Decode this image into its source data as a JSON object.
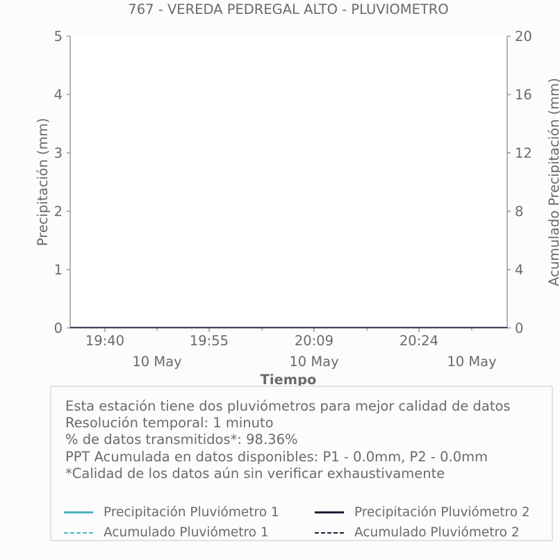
{
  "chart_data": {
    "type": "line",
    "title": "767 - VEREDA PEDREGAL ALTO - PLUVIOMETRO",
    "xlabel": "Tiempo",
    "ylabel": "Precipitación (mm)",
    "y2label": "Acumulado Precipitación (mm)",
    "x_ticks": [
      {
        "time": "19:40",
        "date": "10 May"
      },
      {
        "time": "19:55",
        "date": ""
      },
      {
        "time": "20:09",
        "date": "10 May"
      },
      {
        "time": "20:24",
        "date": ""
      },
      {
        "time": "",
        "date": "10 May"
      }
    ],
    "ylim": [
      0,
      5
    ],
    "y_ticks": [
      "0",
      "1",
      "2",
      "3",
      "4",
      "5"
    ],
    "y2lim": [
      0,
      20
    ],
    "y2_ticks": [
      "0",
      "4",
      "8",
      "12",
      "16",
      "20"
    ],
    "series": [
      {
        "name": "Precipitación Pluviómetro 1",
        "color": "#4fb3bf",
        "style": "solid",
        "values": [
          0,
          0
        ]
      },
      {
        "name": "Precipitación Pluviómetro 2",
        "color": "#1c1f3a",
        "style": "solid",
        "values": [
          0,
          0
        ]
      },
      {
        "name": "Acumulado Pluviómetro 1",
        "color": "#4fb3bf",
        "style": "dashed",
        "values": [
          0,
          0
        ]
      },
      {
        "name": "Acumulado Pluviómetro 2",
        "color": "#1c1f3a",
        "style": "dashed",
        "values": [
          0,
          0
        ]
      }
    ],
    "grid": false
  },
  "info": {
    "line1": "Esta estación tiene dos pluviómetros para mejor calidad de datos",
    "line2": "Resolución temporal: 1 minuto",
    "line3": "% de datos transmitidos*: 98.36%",
    "line4": "PPT Acumulada en datos disponibles: P1 - 0.0mm, P2 - 0.0mm",
    "line5": "*Calidad de los datos aún sin verificar exhaustivamente"
  }
}
